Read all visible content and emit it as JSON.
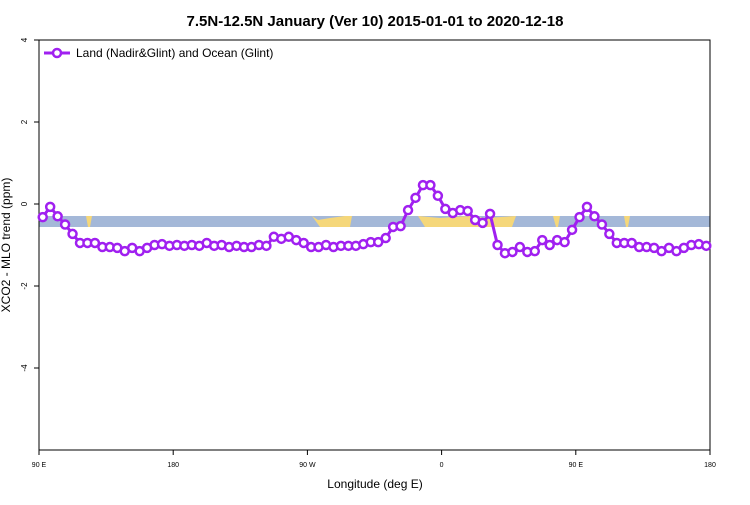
{
  "chart_data": {
    "type": "line",
    "title": "7.5N-12.5N January (Ver 10)   2015-01-01 to 2020-12-18",
    "xlabel": "Longitude (deg E)",
    "ylabel": "XCO2 - MLO trend (ppm)",
    "xlim": [
      90,
      540
    ],
    "ylim": [
      -6,
      4
    ],
    "xticks": [
      {
        "value": 90,
        "label": "90 E"
      },
      {
        "value": 180,
        "label": "180"
      },
      {
        "value": 270,
        "label": "90 W"
      },
      {
        "value": 360,
        "label": "0"
      },
      {
        "value": 450,
        "label": "90 E"
      },
      {
        "value": 540,
        "label": "180"
      }
    ],
    "yticks": [
      4,
      2,
      0,
      -2,
      -4
    ],
    "legend": "top-left",
    "x": [
      92.5,
      97.5,
      102.5,
      107.5,
      112.5,
      117.5,
      122.5,
      127.5,
      132.5,
      137.5,
      142.5,
      147.5,
      152.5,
      157.5,
      162.5,
      167.5,
      172.5,
      177.5,
      182.5,
      187.5,
      192.5,
      197.5,
      202.5,
      207.5,
      212.5,
      217.5,
      222.5,
      227.5,
      232.5,
      237.5,
      242.5,
      247.5,
      252.5,
      257.5,
      262.5,
      267.5,
      272.5,
      277.5,
      282.5,
      287.5,
      292.5,
      297.5,
      302.5,
      307.5,
      312.5,
      317.5,
      322.5,
      327.5,
      332.5,
      337.5,
      342.5,
      347.5,
      352.5,
      357.5,
      362.5,
      367.5,
      372.5,
      377.5,
      382.5,
      387.5,
      392.5,
      397.5,
      402.5,
      407.5,
      412.5,
      417.5,
      422.5,
      427.5,
      432.5,
      437.5,
      442.5,
      447.5,
      452.5,
      457.5,
      462.5,
      467.5,
      472.5,
      477.5,
      482.5,
      487.5,
      492.5,
      497.5,
      502.5,
      507.5,
      512.5,
      517.5,
      522.5,
      527.5,
      532.5,
      537.5
    ],
    "series": [
      {
        "name": "Land (Nadir&Glint) and Ocean (Glint)",
        "color": "#a020f0",
        "values": [
          -0.32,
          -0.07,
          -0.3,
          -0.5,
          -0.73,
          -0.95,
          -0.95,
          -0.95,
          -1.05,
          -1.05,
          -1.07,
          -1.15,
          -1.07,
          -1.15,
          -1.07,
          -1.0,
          -0.98,
          -1.02,
          -1.0,
          -1.02,
          -1.0,
          -1.02,
          -0.95,
          -1.02,
          -1.0,
          -1.05,
          -1.02,
          -1.05,
          -1.05,
          -1.0,
          -1.02,
          -0.8,
          -0.85,
          -0.8,
          -0.88,
          -0.95,
          -1.05,
          -1.05,
          -1.0,
          -1.05,
          -1.02,
          -1.02,
          -1.02,
          -0.98,
          -0.93,
          -0.93,
          -0.83,
          -0.56,
          -0.54,
          -0.15,
          0.15,
          0.46,
          0.46,
          0.2,
          -0.12,
          -0.22,
          -0.15,
          -0.17,
          -0.39,
          -0.46,
          -0.24,
          -1.0,
          -1.2,
          -1.17,
          -1.05,
          -1.17,
          -1.15,
          -0.88,
          -1.0,
          -0.88,
          -0.93,
          -0.63,
          -0.32,
          -0.07,
          -0.3,
          -0.5,
          -0.73,
          -0.95,
          -0.95,
          -0.95,
          -1.05,
          -1.05,
          -1.07,
          -1.15,
          -1.07,
          -1.15,
          -1.07,
          -1.0,
          -0.98,
          -1.02
        ]
      }
    ]
  }
}
